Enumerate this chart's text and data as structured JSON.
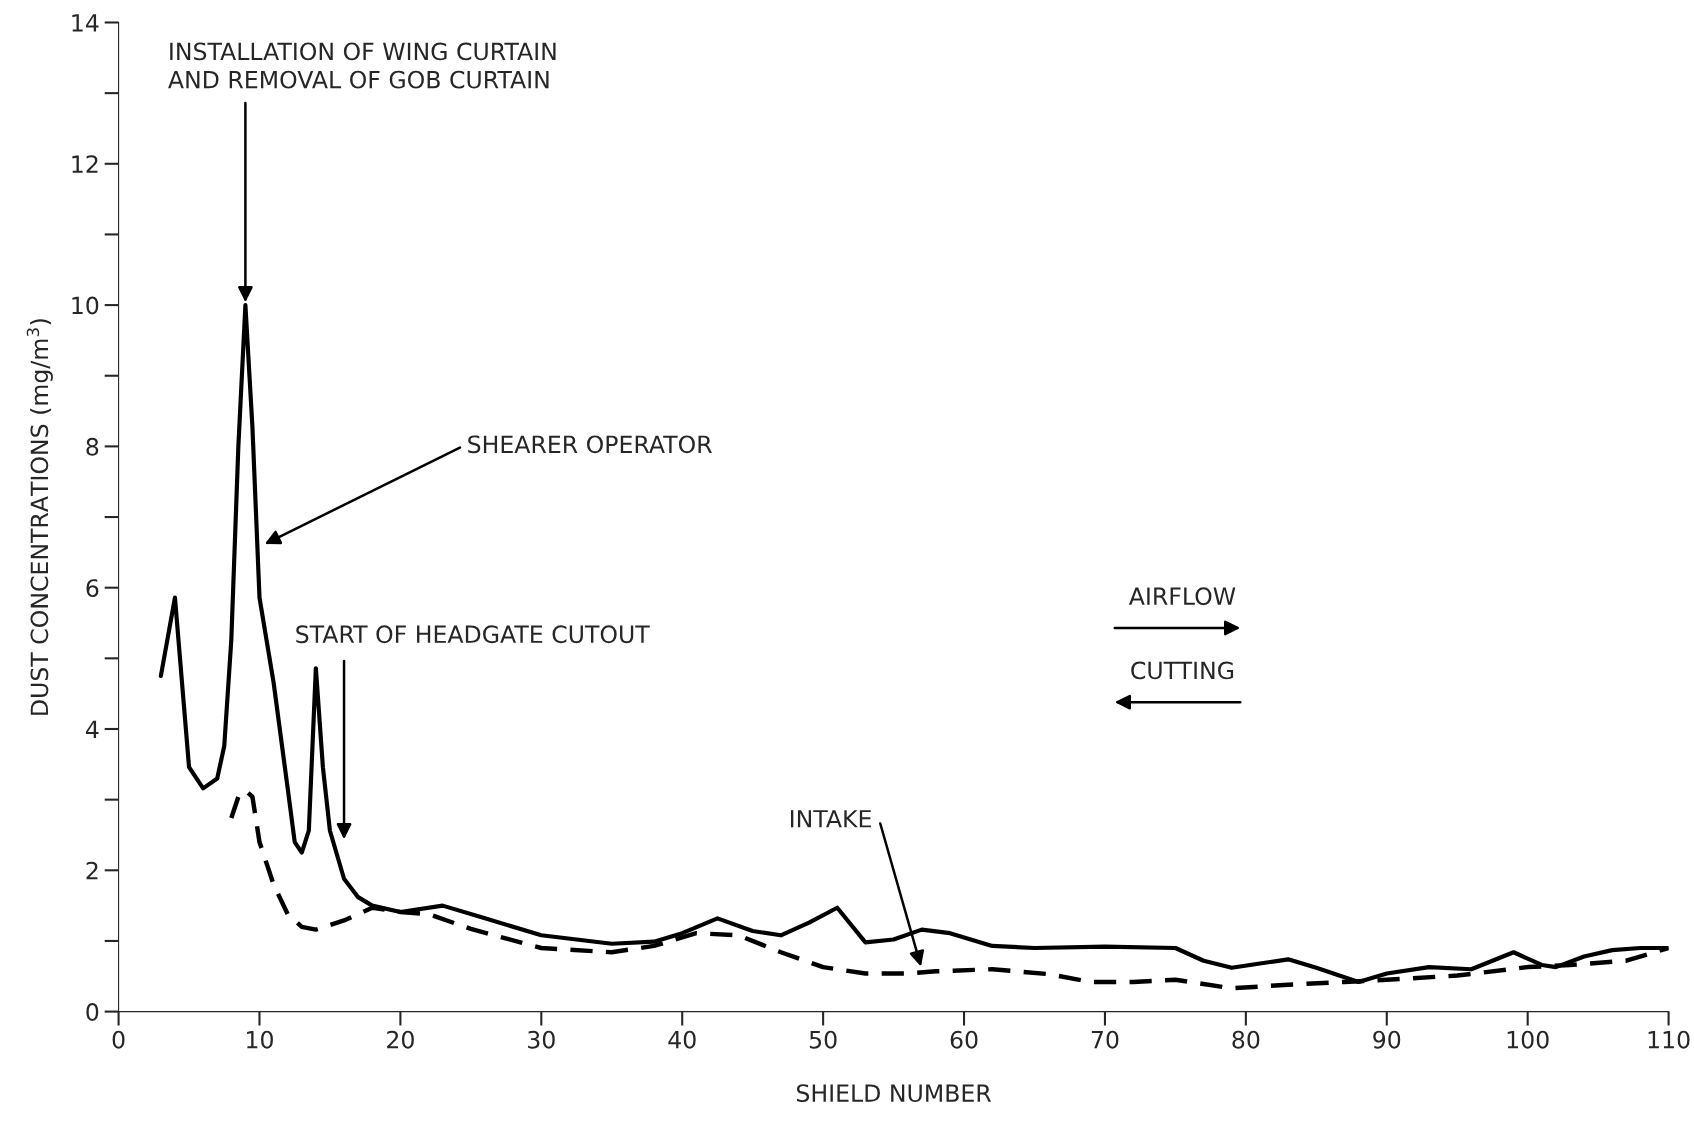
{
  "chart_data": {
    "type": "line",
    "xlabel": "SHIELD NUMBER",
    "ylabel": "DUST CONCENTRATIONS (mg/m$^{3}$)",
    "xlim": [
      0,
      110
    ],
    "xticks": [
      0,
      10,
      20,
      30,
      40,
      50,
      60,
      70,
      80,
      90,
      100,
      110
    ],
    "ylim": [
      0,
      14
    ],
    "yticks": [
      0,
      {
        "value": 1,
        "label": null
      },
      2,
      {
        "value": 3,
        "label": null
      },
      4,
      {
        "value": 5,
        "label": null
      },
      6,
      {
        "value": 7,
        "label": null
      },
      8,
      {
        "value": 9,
        "label": null
      },
      10,
      {
        "value": 11,
        "label": null
      },
      12,
      {
        "value": 13,
        "label": null
      },
      14
    ],
    "grid": false,
    "legend": false,
    "marker": "none",
    "series": [
      {
        "color": "#000000",
        "line_style": "solid",
        "x": [
          3,
          4,
          5,
          6,
          7,
          7.5,
          8,
          8.5,
          9,
          9.5,
          10,
          11,
          12,
          12.5,
          13,
          13.5,
          14,
          14.5,
          15,
          16,
          17,
          18,
          20,
          23,
          26,
          30,
          35,
          38,
          40,
          42.5,
          45,
          47,
          49,
          51,
          53,
          55,
          57,
          59,
          62,
          65,
          70,
          75,
          77,
          79,
          81,
          83,
          85,
          88,
          90,
          93,
          96,
          97.5,
          99,
          101,
          102,
          104,
          106,
          108,
          110
        ],
        "values": [
          4.75,
          5.86,
          3.46,
          3.16,
          3.3,
          3.76,
          5.26,
          8.0,
          10.0,
          8.27,
          5.86,
          4.66,
          3.16,
          2.4,
          2.25,
          2.56,
          4.86,
          3.46,
          2.56,
          1.88,
          1.62,
          1.5,
          1.41,
          1.5,
          1.32,
          1.08,
          0.96,
          0.99,
          1.11,
          1.32,
          1.14,
          1.08,
          1.26,
          1.47,
          0.98,
          1.02,
          1.16,
          1.11,
          0.93,
          0.9,
          0.92,
          0.9,
          0.72,
          0.62,
          0.68,
          0.74,
          0.62,
          0.42,
          0.54,
          0.63,
          0.6,
          0.72,
          0.84,
          0.66,
          0.63,
          0.78,
          0.87,
          0.9,
          0.9
        ]
      },
      {
        "color": "#000000",
        "line_style": "dashed",
        "x": [
          8,
          8.5,
          9,
          9.5,
          10,
          11,
          12,
          13,
          14,
          16,
          18,
          20,
          22,
          25,
          30,
          35,
          38,
          41,
          44,
          47,
          50,
          53,
          56,
          58,
          62,
          66,
          69,
          72,
          75,
          79,
          83,
          87,
          90,
          95,
          100,
          103,
          107,
          110
        ],
        "values": [
          2.74,
          3.04,
          3.13,
          3.04,
          2.4,
          1.8,
          1.38,
          1.2,
          1.16,
          1.29,
          1.47,
          1.41,
          1.38,
          1.17,
          0.9,
          0.84,
          0.93,
          1.11,
          1.08,
          0.84,
          0.63,
          0.54,
          0.54,
          0.57,
          0.6,
          0.53,
          0.42,
          0.42,
          0.45,
          0.33,
          0.38,
          0.42,
          0.45,
          0.51,
          0.63,
          0.66,
          0.72,
          0.9
        ]
      }
    ],
    "annotations": [
      {
        "text": "INSTALLATION OF WING CURTAIN\nAND REMOVAL OF GOB CURTAIN",
        "x": 9,
        "y": 10.0
      },
      "SHEARER OPERATOR",
      "START OF HEADGATE CUTOUT",
      "INTAKE",
      "AIRFLOW",
      "CUTTING"
    ]
  }
}
